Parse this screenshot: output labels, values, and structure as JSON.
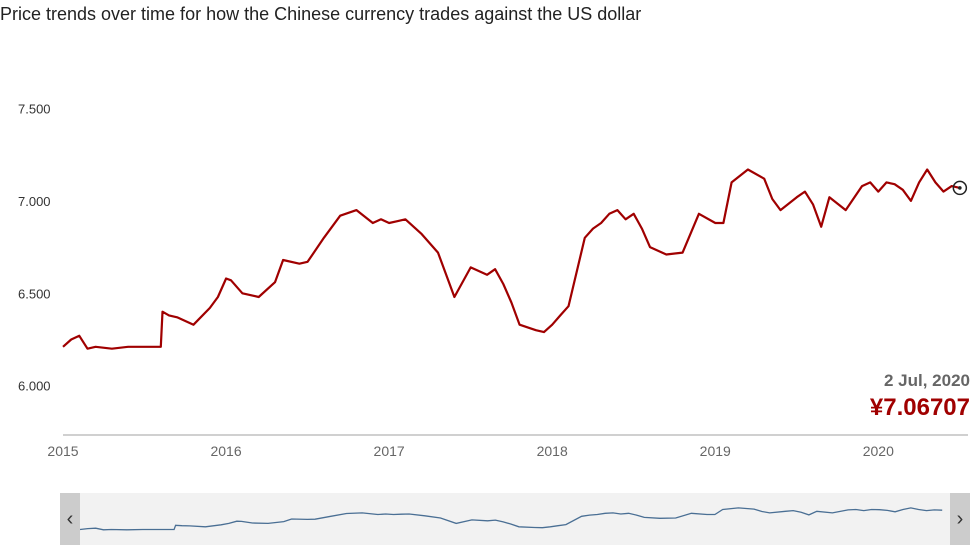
{
  "title": "Price trends over time for how the Chinese currency trades against the US dollar",
  "readout": {
    "date": "2 Jul, 2020",
    "price": "¥7.06707"
  },
  "navigator": {
    "left_icon": "‹",
    "right_icon": "›"
  },
  "colors": {
    "line": "#a00000",
    "price": "#a00000",
    "navigator_line": "#4a6f94",
    "navigator_bg": "#f2f2f2"
  },
  "chart_data": {
    "type": "line",
    "title": "Price trends over time for how the Chinese currency trades against the US dollar",
    "xlabel": "",
    "ylabel": "",
    "x_ticks": [
      "2015",
      "2016",
      "2017",
      "2018",
      "2019",
      "2020"
    ],
    "y_ticks": [
      "6.000",
      "6.500",
      "7.000",
      "7.500"
    ],
    "ylim": [
      5.76,
      7.6
    ],
    "xlim": [
      2015.0,
      2020.55
    ],
    "grid": false,
    "legend": "none",
    "series": [
      {
        "x": [
          2015.0,
          2015.05,
          2015.1,
          2015.15,
          2015.2,
          2015.3,
          2015.4,
          2015.5,
          2015.6,
          2015.61,
          2015.65,
          2015.7,
          2015.8,
          2015.9,
          2015.95,
          2016.0,
          2016.03,
          2016.1,
          2016.2,
          2016.3,
          2016.35,
          2016.45,
          2016.5,
          2016.6,
          2016.7,
          2016.8,
          2016.9,
          2016.95,
          2017.0,
          2017.05,
          2017.1,
          2017.2,
          2017.3,
          2017.4,
          2017.5,
          2017.6,
          2017.65,
          2017.7,
          2017.75,
          2017.8,
          2017.9,
          2017.95,
          2018.0,
          2018.05,
          2018.1,
          2018.2,
          2018.25,
          2018.3,
          2018.35,
          2018.4,
          2018.45,
          2018.5,
          2018.55,
          2018.6,
          2018.7,
          2018.8,
          2018.9,
          2019.0,
          2019.05,
          2019.1,
          2019.2,
          2019.3,
          2019.35,
          2019.4,
          2019.5,
          2019.55,
          2019.6,
          2019.65,
          2019.7,
          2019.8,
          2019.9,
          2019.95,
          2020.0,
          2020.05,
          2020.1,
          2020.15,
          2020.2,
          2020.25,
          2020.3,
          2020.35,
          2020.4,
          2020.45,
          2020.5
        ],
        "y": [
          6.21,
          6.25,
          6.27,
          6.2,
          6.21,
          6.2,
          6.21,
          6.21,
          6.21,
          6.4,
          6.38,
          6.37,
          6.33,
          6.42,
          6.48,
          6.58,
          6.57,
          6.5,
          6.48,
          6.56,
          6.68,
          6.66,
          6.67,
          6.8,
          6.92,
          6.95,
          6.88,
          6.9,
          6.88,
          6.89,
          6.9,
          6.82,
          6.72,
          6.48,
          6.64,
          6.6,
          6.63,
          6.55,
          6.45,
          6.33,
          6.3,
          6.29,
          6.33,
          6.38,
          6.43,
          6.8,
          6.85,
          6.88,
          6.93,
          6.95,
          6.9,
          6.93,
          6.85,
          6.75,
          6.71,
          6.72,
          6.93,
          6.88,
          6.88,
          7.1,
          7.17,
          7.12,
          7.01,
          6.95,
          7.02,
          7.05,
          6.98,
          6.86,
          7.02,
          6.95,
          7.08,
          7.1,
          7.05,
          7.1,
          7.09,
          7.06,
          7.0,
          7.1,
          7.17,
          7.1,
          7.05,
          7.08,
          7.07
        ]
      }
    ]
  }
}
